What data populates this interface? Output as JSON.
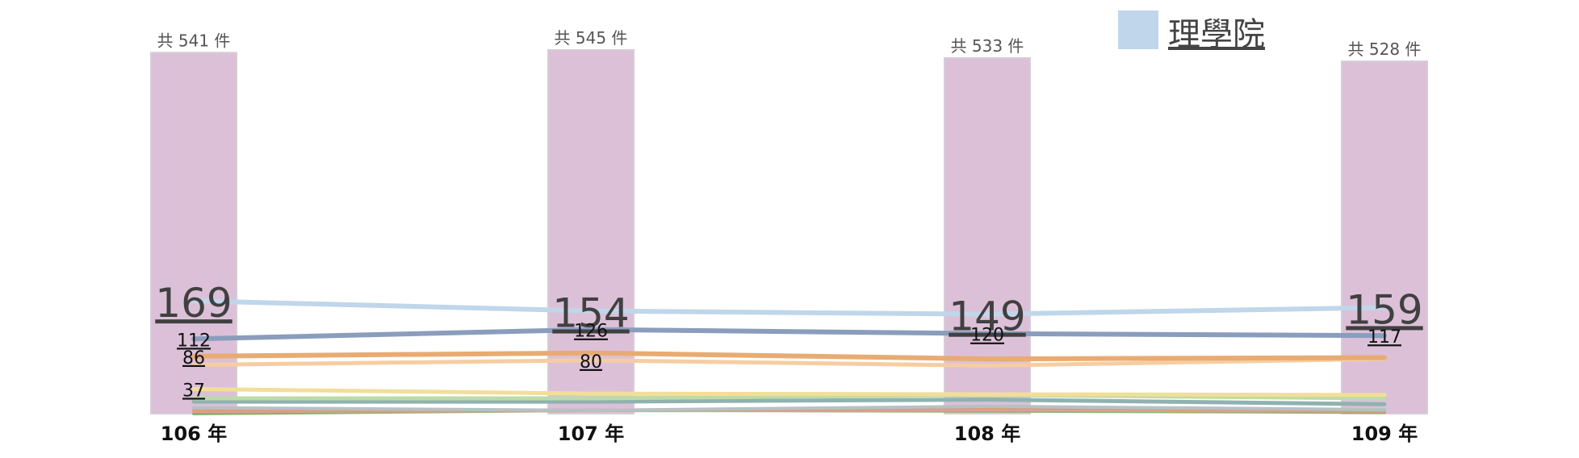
{
  "chart_data": {
    "type": "bar",
    "categories": [
      "106 年",
      "107 年",
      "108 年",
      "109 年"
    ],
    "totals": {
      "values": [
        541,
        545,
        533,
        528
      ],
      "labels": [
        "共 541 件",
        "共 545 件",
        "共 533 件",
        "共 528 件"
      ],
      "color": "#dcc0d8"
    },
    "ylim": [
      0,
      545
    ],
    "legend": {
      "position": "top-right",
      "entries": [
        {
          "name": "理學院",
          "color": "#c0d6ea"
        }
      ]
    },
    "series": [
      {
        "name": "理學院",
        "color": "#c0d6ea",
        "width": 6,
        "values": [
          169,
          154,
          149,
          159
        ],
        "labels": [
          "169",
          "154",
          "149",
          "159"
        ],
        "big": true
      },
      {
        "color": "#8a9dbd",
        "width": 6,
        "values": [
          112,
          126,
          120,
          117
        ],
        "labels": [
          "112",
          "126",
          "120",
          "117"
        ],
        "big": false
      },
      {
        "color": "#e8ab72",
        "width": 6,
        "values": [
          86,
          91,
          82,
          84
        ],
        "labels": [
          "86",
          "",
          "",
          ""
        ],
        "big": false
      },
      {
        "color": "#f6cda2",
        "width": 5,
        "values": [
          73,
          80,
          72,
          82
        ],
        "labels": [
          "",
          "80",
          "",
          ""
        ],
        "big": false
      },
      {
        "color": "#f2de9a",
        "width": 5,
        "values": [
          37,
          30,
          29,
          28
        ],
        "labels": [
          "37",
          "",
          "",
          ""
        ],
        "big": false
      },
      {
        "color": "#bcdba8",
        "width": 5,
        "values": [
          23,
          23,
          28,
          23
        ],
        "labels": [
          "",
          "",
          "",
          ""
        ],
        "big": false
      },
      {
        "color": "#8fb2b0",
        "width": 5,
        "values": [
          18,
          18,
          21,
          14
        ],
        "labels": [
          "",
          "",
          "",
          ""
        ],
        "big": false
      },
      {
        "color": "#b5c2c5",
        "width": 4,
        "values": [
          9,
          5,
          11,
          6
        ],
        "labels": [
          "",
          "",
          "",
          ""
        ],
        "big": false
      },
      {
        "color": "#d8a07a",
        "width": 4,
        "values": [
          5,
          5,
          8,
          4
        ],
        "labels": [
          "",
          "",
          "",
          ""
        ],
        "big": false
      },
      {
        "color": "#e39e9e",
        "width": 3,
        "values": [
          3,
          4,
          5,
          3
        ],
        "labels": [
          "",
          "",
          "",
          ""
        ],
        "big": false
      },
      {
        "color": "#86b274",
        "width": 4,
        "values": [
          0,
          5,
          4,
          2
        ],
        "labels": [
          "",
          "",
          "",
          ""
        ],
        "big": false
      }
    ]
  }
}
